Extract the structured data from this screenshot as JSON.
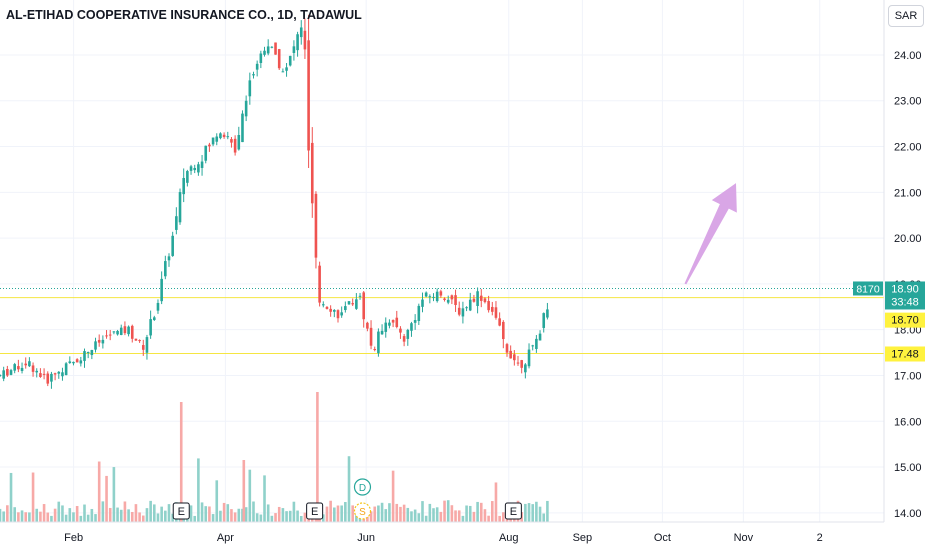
{
  "header": {
    "title": "AL-ETIHAD COOPERATIVE INSURANCE CO., 1D, TADAWUL"
  },
  "currency": {
    "label": "SAR"
  },
  "colors": {
    "up": "#26a69a",
    "down": "#ef5350",
    "up_vol": "#8fd1ca",
    "down_vol": "#f7a9a7",
    "level": "#f5e642",
    "arrow": "#d9a6e6",
    "label_yellow": "#fff23e"
  },
  "price_axis": {
    "ticks": [
      "24.00",
      "23.00",
      "22.00",
      "21.00",
      "20.00",
      "19.00",
      "18.00",
      "17.00",
      "16.00",
      "15.00",
      "14.00"
    ]
  },
  "time_axis": {
    "labels": [
      "Feb",
      "Apr",
      "Jun",
      "Aug",
      "Sep",
      "Oct",
      "Nov",
      "2"
    ]
  },
  "markers": {
    "earnings": "E",
    "dividend": "D",
    "split": "S"
  },
  "price_labels": {
    "last_price": "18.90",
    "countdown": "33:48",
    "volume": "8170",
    "level_upper": "18.70",
    "level_lower": "17.48"
  },
  "chart_data": {
    "type": "candlestick",
    "title": "AL-ETIHAD COOPERATIVE INSURANCE CO., 1D, TADAWUL",
    "ylim": [
      13.8,
      25.2
    ],
    "x_range": [
      "Jan",
      "Nov"
    ],
    "x_ticks": [
      "Feb",
      "Apr",
      "Jun",
      "Aug",
      "Sep",
      "Oct",
      "Nov",
      "2"
    ],
    "horizontal_levels": [
      18.7,
      17.48
    ],
    "last_price": 18.9,
    "trend": [
      {
        "t": 0.0,
        "p": 17.0
      },
      {
        "t": 0.03,
        "p": 17.3
      },
      {
        "t": 0.05,
        "p": 16.9
      },
      {
        "t": 0.08,
        "p": 17.3
      },
      {
        "t": 0.1,
        "p": 17.6
      },
      {
        "t": 0.12,
        "p": 17.9
      },
      {
        "t": 0.14,
        "p": 18.0
      },
      {
        "t": 0.155,
        "p": 17.6
      },
      {
        "t": 0.17,
        "p": 18.5
      },
      {
        "t": 0.18,
        "p": 19.4
      },
      {
        "t": 0.19,
        "p": 20.2
      },
      {
        "t": 0.2,
        "p": 21.4
      },
      {
        "t": 0.22,
        "p": 21.8
      },
      {
        "t": 0.24,
        "p": 22.4
      },
      {
        "t": 0.255,
        "p": 21.9
      },
      {
        "t": 0.27,
        "p": 23.4
      },
      {
        "t": 0.29,
        "p": 24.3
      },
      {
        "t": 0.31,
        "p": 23.6
      },
      {
        "t": 0.33,
        "p": 24.8
      },
      {
        "t": 0.335,
        "p": 22.0
      },
      {
        "t": 0.345,
        "p": 18.7
      },
      {
        "t": 0.37,
        "p": 18.3
      },
      {
        "t": 0.39,
        "p": 18.8
      },
      {
        "t": 0.405,
        "p": 17.5
      },
      {
        "t": 0.42,
        "p": 18.3
      },
      {
        "t": 0.44,
        "p": 17.8
      },
      {
        "t": 0.46,
        "p": 18.7
      },
      {
        "t": 0.48,
        "p": 18.8
      },
      {
        "t": 0.5,
        "p": 18.4
      },
      {
        "t": 0.52,
        "p": 18.8
      },
      {
        "t": 0.535,
        "p": 18.4
      },
      {
        "t": 0.55,
        "p": 17.6
      },
      {
        "t": 0.565,
        "p": 17.2
      },
      {
        "t": 0.58,
        "p": 17.6
      },
      {
        "t": 0.59,
        "p": 18.2
      },
      {
        "t": 0.6,
        "p": 18.9
      }
    ],
    "projection_arrow": {
      "from": {
        "t": 0.745,
        "p": 19.0
      },
      "to": {
        "t": 0.8,
        "p": 21.2
      }
    }
  }
}
